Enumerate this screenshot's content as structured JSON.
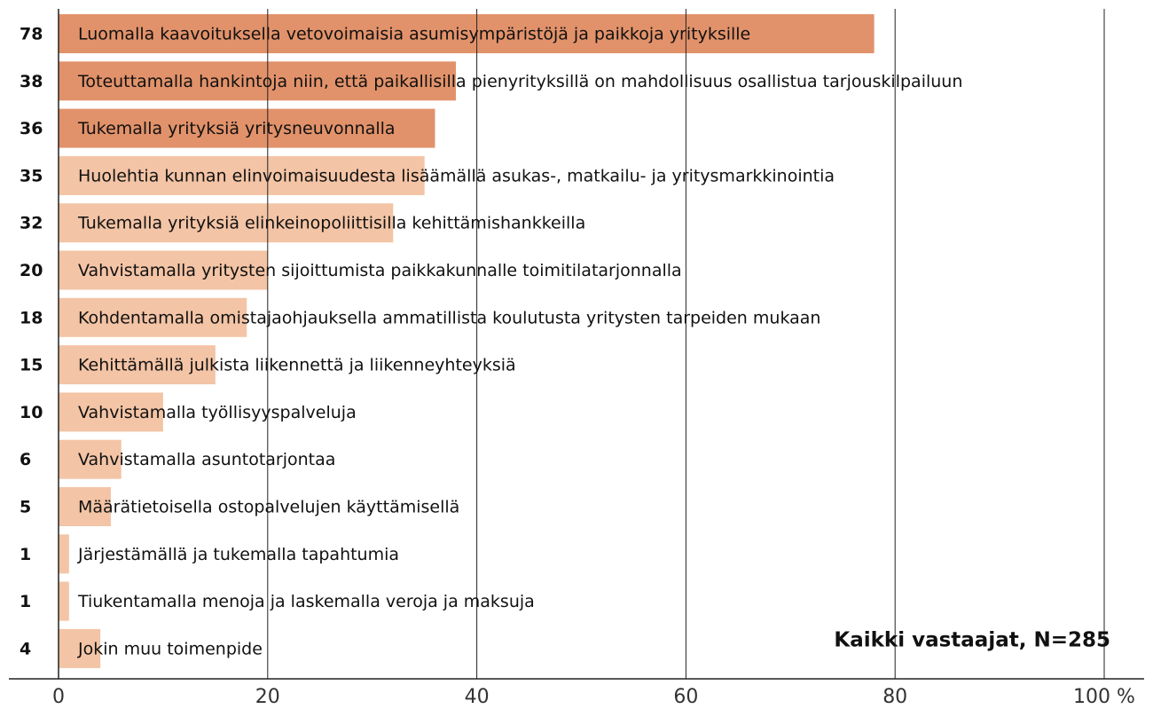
{
  "chart_data": {
    "type": "bar",
    "orientation": "horizontal",
    "categories": [
      "Luomalla kaavoituksella vetovoimaisia asumisympäristöjä ja paikkoja yrityksille",
      "Toteuttamalla hankintoja niin, että paikallisilla pienyrityksillä on mahdollisuus osallistua tarjouskilpailuun",
      "Tukemalla yrityksiä yritysneuvonnalla",
      "Huolehtia kunnan elinvoimaisuudesta lisäämällä asukas-, matkailu- ja yritysmarkkinointia",
      "Tukemalla yrityksiä elinkeinopoliittisilla kehittämishankkeilla",
      "Vahvistamalla yritysten sijoittumista paikkakunnalle toimitilatarjonnalla",
      "Kohdentamalla omistajaohjauksella ammatillista koulutusta yritysten tarpeiden mukaan",
      "Kehittämällä julkista liikennettä ja liikenneyhteyksiä",
      "Vahvistamalla työllisyyspalveluja",
      "Vahvistamalla asuntotarjontaa",
      "Määrätietoisella ostopalvelujen käyttämisellä",
      "Järjestämällä ja tukemalla tapahtumia",
      "Tiukentamalla menoja ja laskemalla veroja ja maksuja",
      "Jokin muu toimenpide"
    ],
    "values": [
      78,
      38,
      36,
      35,
      32,
      20,
      18,
      15,
      10,
      6,
      5,
      1,
      1,
      4
    ],
    "colors": [
      "#e2926a",
      "#e2926a",
      "#e2926a",
      "#f3c4a5",
      "#f3c4a5",
      "#f3c4a5",
      "#f3c4a5",
      "#f3c4a5",
      "#f3c4a5",
      "#f3c4a5",
      "#f3c4a5",
      "#f3c4a5",
      "#f3c4a5",
      "#f3c4a5"
    ],
    "xlim": [
      0,
      100
    ],
    "xticks": [
      0,
      20,
      40,
      60,
      80,
      {
        "value": 100,
        "label": "100 %"
      }
    ],
    "grid": true,
    "annotation": "Kaikki vastaajat, N=285"
  }
}
